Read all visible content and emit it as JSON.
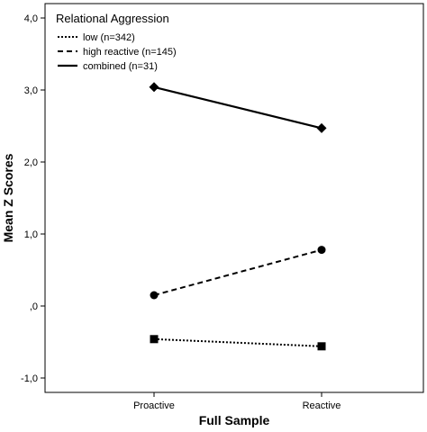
{
  "chart_data": {
    "type": "line",
    "legend_title": "Relational Aggression",
    "legend_position": "top-left",
    "xlabel": "Full Sample",
    "ylabel": "Mean Z Scores",
    "categories": [
      "Proactive",
      "Reactive"
    ],
    "ylim": [
      -1.2,
      4.2
    ],
    "yticks": [
      -1.0,
      0.0,
      1.0,
      2.0,
      3.0,
      4.0
    ],
    "ytick_labels": [
      "-1,0",
      ",0",
      "1,0",
      "2,0",
      "3,0",
      "4,0"
    ],
    "grid": false,
    "series": [
      {
        "name": "low (n=342)",
        "values": [
          -0.46,
          -0.56
        ],
        "marker": "square",
        "dash": "dotted",
        "color": "#000000"
      },
      {
        "name": "high reactive (n=145)",
        "values": [
          0.15,
          0.78
        ],
        "marker": "circle",
        "dash": "dashed",
        "color": "#000000"
      },
      {
        "name": "combined (n=31)",
        "values": [
          3.04,
          2.47
        ],
        "marker": "diamond",
        "dash": "solid",
        "color": "#000000"
      }
    ]
  }
}
